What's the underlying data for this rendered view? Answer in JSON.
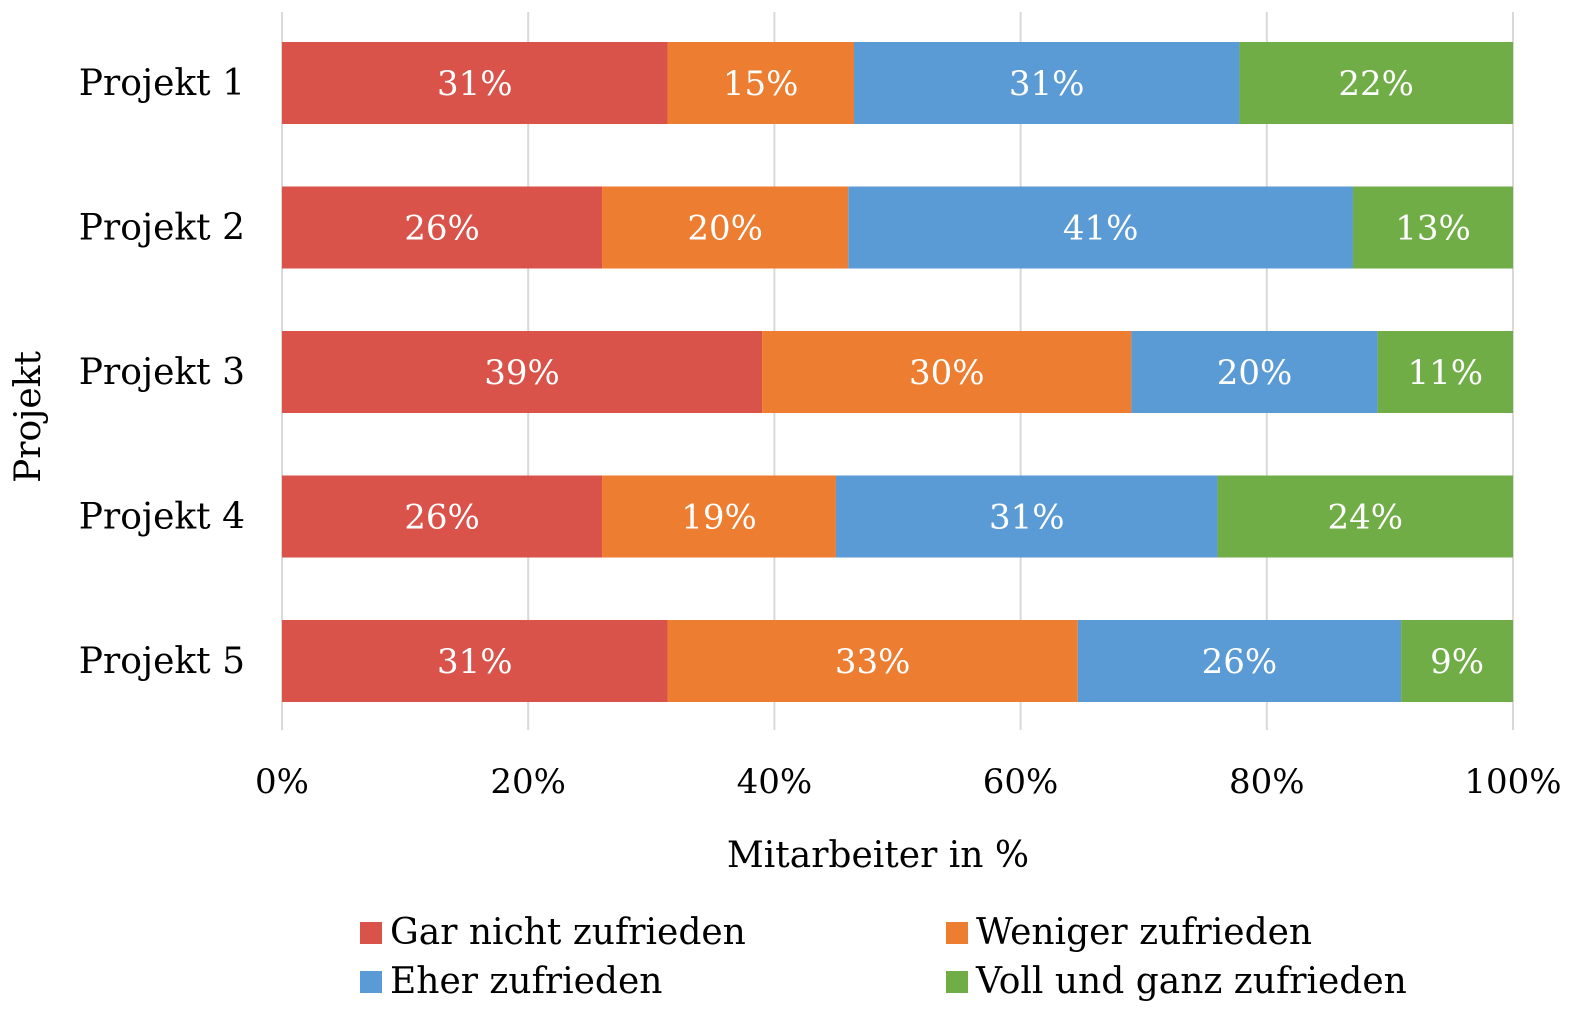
{
  "chart_data": {
    "type": "bar",
    "orientation": "horizontal",
    "stacked": true,
    "normalized": true,
    "categories": [
      "Projekt 1",
      "Projekt 2",
      "Projekt 3",
      "Projekt 4",
      "Projekt 5"
    ],
    "series": [
      {
        "name": "Gar nicht zufrieden",
        "color": "#d9534a",
        "values": [
          31,
          26,
          39,
          26,
          31
        ]
      },
      {
        "name": "Weniger zufrieden",
        "color": "#ed7d31",
        "values": [
          15,
          20,
          30,
          19,
          33
        ]
      },
      {
        "name": "Eher zufrieden",
        "color": "#5b9bd5",
        "values": [
          31,
          41,
          20,
          31,
          26
        ]
      },
      {
        "name": "Voll und ganz zufrieden",
        "color": "#70ad47",
        "values": [
          22,
          13,
          11,
          24,
          9
        ]
      }
    ],
    "data_labels": [
      [
        "31%",
        "15%",
        "31%",
        "22%"
      ],
      [
        "26%",
        "20%",
        "41%",
        "13%"
      ],
      [
        "39%",
        "30%",
        "20%",
        "11%"
      ],
      [
        "26%",
        "19%",
        "31%",
        "24%"
      ],
      [
        "31%",
        "33%",
        "26%",
        "9%"
      ]
    ],
    "xlim": [
      0,
      100
    ],
    "xticks": [
      "0%",
      "20%",
      "40%",
      "60%",
      "80%",
      "100%"
    ],
    "xlabel": "Mitarbeiter in %",
    "ylabel": "Projekt",
    "title": "",
    "grid": "vertical",
    "legend_position": "bottom",
    "grid_color": "#d9d9d9",
    "label_color": "#ffffff",
    "text_color": "#000000"
  }
}
